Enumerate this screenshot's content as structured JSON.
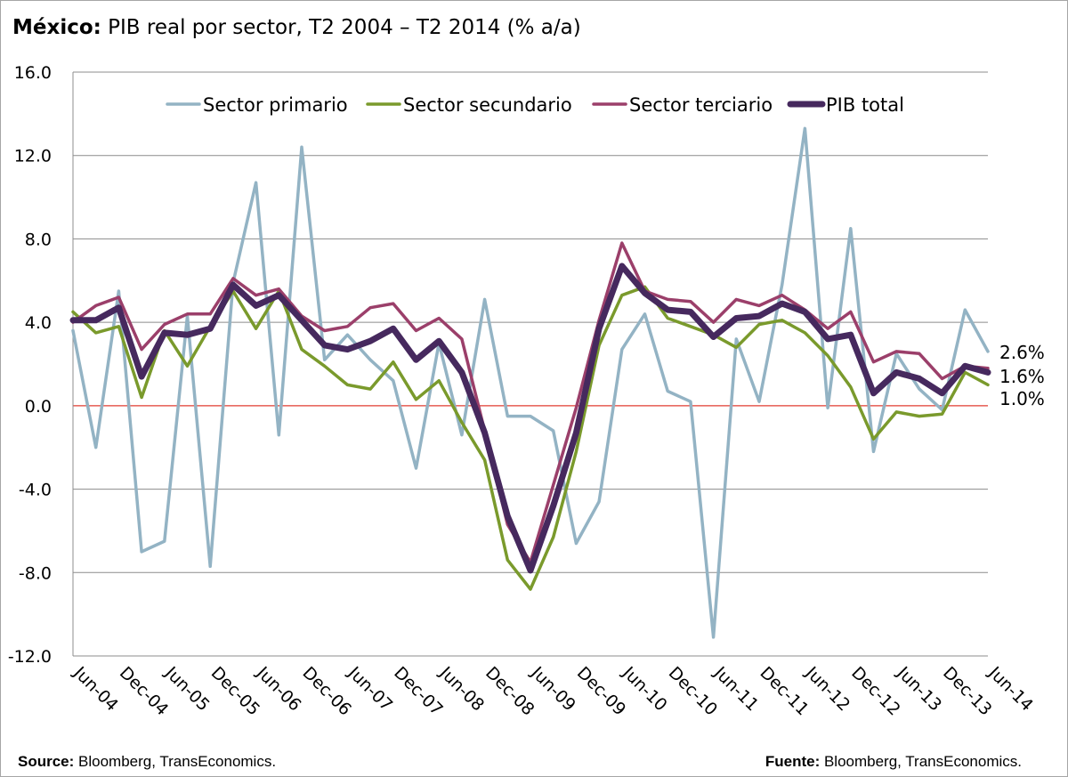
{
  "title_bold": "México:",
  "title_rest": " PIB real por sector, T2 2004 – T2 2014 (% a/a)",
  "footer": {
    "source_label": "Source:",
    "source_text": " Bloomberg, TransEconomics.",
    "fuente_label": "Fuente:",
    "fuente_text": " Bloomberg, TransEconomics."
  },
  "chart_data": {
    "type": "line",
    "title": "México: PIB real por sector, T2 2004 – T2 2014 (% a/a)",
    "ylim": [
      -12,
      16
    ],
    "yticks": [
      16,
      12,
      8,
      4,
      0,
      -4,
      -8,
      -12
    ],
    "ytick_labels": [
      "16.0",
      "12.0",
      "8.0",
      "4.0",
      "0.0",
      "-4.0",
      "-8.0",
      "-12.0"
    ],
    "grid": true,
    "legend_position": "top",
    "zero_line_color": "#e03c31",
    "x": [
      "Jun-04",
      "Sep-04",
      "Dec-04",
      "Mar-05",
      "Jun-05",
      "Sep-05",
      "Dec-05",
      "Mar-06",
      "Jun-06",
      "Sep-06",
      "Dec-06",
      "Mar-07",
      "Jun-07",
      "Sep-07",
      "Dec-07",
      "Mar-08",
      "Jun-08",
      "Sep-08",
      "Dec-08",
      "Mar-09",
      "Jun-09",
      "Sep-09",
      "Dec-09",
      "Mar-10",
      "Jun-10",
      "Sep-10",
      "Dec-10",
      "Mar-11",
      "Jun-11",
      "Sep-11",
      "Dec-11",
      "Mar-12",
      "Jun-12",
      "Sep-12",
      "Dec-12",
      "Mar-13",
      "Jun-13",
      "Sep-13",
      "Dec-13",
      "Mar-14",
      "Jun-14"
    ],
    "xtick_labels": [
      "Jun-04",
      "Dec-04",
      "Jun-05",
      "Dec-05",
      "Jun-06",
      "Dec-06",
      "Jun-07",
      "Dec-07",
      "Jun-08",
      "Dec-08",
      "Jun-09",
      "Dec-09",
      "Jun-10",
      "Dec-10",
      "Jun-11",
      "Dec-11",
      "Jun-12",
      "Dec-12",
      "Jun-13",
      "Dec-13",
      "Jun-14"
    ],
    "series": [
      {
        "name": "Sector primario",
        "color": "#93b3c4",
        "values": [
          3.6,
          -2.0,
          5.5,
          -7.0,
          -6.5,
          4.3,
          -7.7,
          5.9,
          10.7,
          -1.4,
          12.4,
          2.2,
          3.4,
          2.2,
          1.2,
          -3.0,
          3.0,
          -1.4,
          5.1,
          -0.5,
          -0.5,
          -1.2,
          -6.6,
          -4.6,
          2.7,
          4.4,
          0.7,
          0.2,
          -11.1,
          3.2,
          0.2,
          5.8,
          13.3,
          -0.1,
          8.5,
          -2.2,
          2.5,
          0.8,
          -0.2,
          4.6,
          2.6
        ]
      },
      {
        "name": "Sector secundario",
        "color": "#7a9a2c",
        "values": [
          4.5,
          3.5,
          3.8,
          0.4,
          3.6,
          1.9,
          3.8,
          5.5,
          3.7,
          5.5,
          2.7,
          1.9,
          1.0,
          0.8,
          2.1,
          0.3,
          1.2,
          -0.8,
          -2.6,
          -7.4,
          -8.8,
          -6.3,
          -2.2,
          2.9,
          5.3,
          5.7,
          4.2,
          3.8,
          3.4,
          2.8,
          3.9,
          4.1,
          3.5,
          2.4,
          0.9,
          -1.6,
          -0.3,
          -0.5,
          -0.4,
          1.6,
          1.0
        ]
      },
      {
        "name": "Sector terciario",
        "color": "#9b3f6a",
        "values": [
          4.0,
          4.8,
          5.2,
          2.7,
          3.9,
          4.4,
          4.4,
          6.1,
          5.3,
          5.6,
          4.3,
          3.6,
          3.8,
          4.7,
          4.9,
          3.6,
          4.2,
          3.2,
          -1.2,
          -5.7,
          -7.5,
          -3.8,
          -0.1,
          4.1,
          7.8,
          5.5,
          5.1,
          5.0,
          4.0,
          5.1,
          4.8,
          5.3,
          4.6,
          3.7,
          4.5,
          2.1,
          2.6,
          2.5,
          1.3,
          1.9,
          1.8
        ]
      },
      {
        "name": "PIB total",
        "color": "#46295e",
        "values": [
          4.1,
          4.1,
          4.7,
          1.4,
          3.5,
          3.4,
          3.7,
          5.8,
          4.8,
          5.3,
          4.1,
          2.9,
          2.7,
          3.1,
          3.7,
          2.2,
          3.1,
          1.6,
          -1.3,
          -5.3,
          -7.9,
          -4.8,
          -1.3,
          3.7,
          6.7,
          5.4,
          4.6,
          4.5,
          3.3,
          4.2,
          4.3,
          4.9,
          4.5,
          3.2,
          3.4,
          0.6,
          1.6,
          1.3,
          0.6,
          1.9,
          1.6
        ]
      }
    ],
    "end_labels": [
      "2.6%",
      "1.6%",
      "1.0%"
    ]
  }
}
